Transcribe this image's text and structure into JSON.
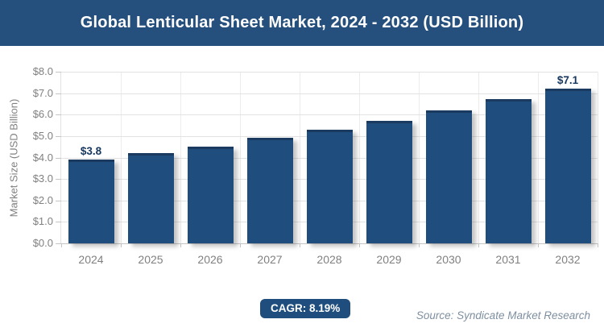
{
  "header": {
    "title": "Global Lenticular Sheet Market, 2024 - 2032 (USD Billion)"
  },
  "chart_data": {
    "type": "bar",
    "title": "Global Lenticular Sheet Market, 2024 - 2032 (USD Billion)",
    "categories": [
      "2024",
      "2025",
      "2026",
      "2027",
      "2028",
      "2029",
      "2030",
      "2031",
      "2032"
    ],
    "values": [
      3.8,
      4.1,
      4.4,
      4.8,
      5.2,
      5.6,
      6.1,
      6.6,
      7.1
    ],
    "xlabel": "",
    "ylabel": "Market Size (USD Billion)",
    "ylim": [
      0,
      8
    ],
    "ytick_step": 1,
    "ytick_prefix": "$",
    "ytick_decimals": 1,
    "grid": true,
    "legend": "none",
    "annotations": [
      {
        "category": "2024",
        "text": "$3.8"
      },
      {
        "category": "2032",
        "text": "$7.1"
      }
    ]
  },
  "footer": {
    "cagr_label": "CAGR: 8.19%",
    "source": "Source: Syndicate Market Research"
  },
  "colors": {
    "header_bg": "#25507E",
    "title_text": "#FFFFFF",
    "bar": "#1F4E7E",
    "bar_edge": "#1A3B5F",
    "badge_bg": "#1F4E7E",
    "annotation": "#17375E",
    "axis_text": "#808080",
    "muted_text": "#7E8FA0",
    "grid": "#E2E2E2",
    "grid_light": "#ECECEC",
    "tick": "#C6C6C6",
    "baseline": "#C6C6C6"
  }
}
